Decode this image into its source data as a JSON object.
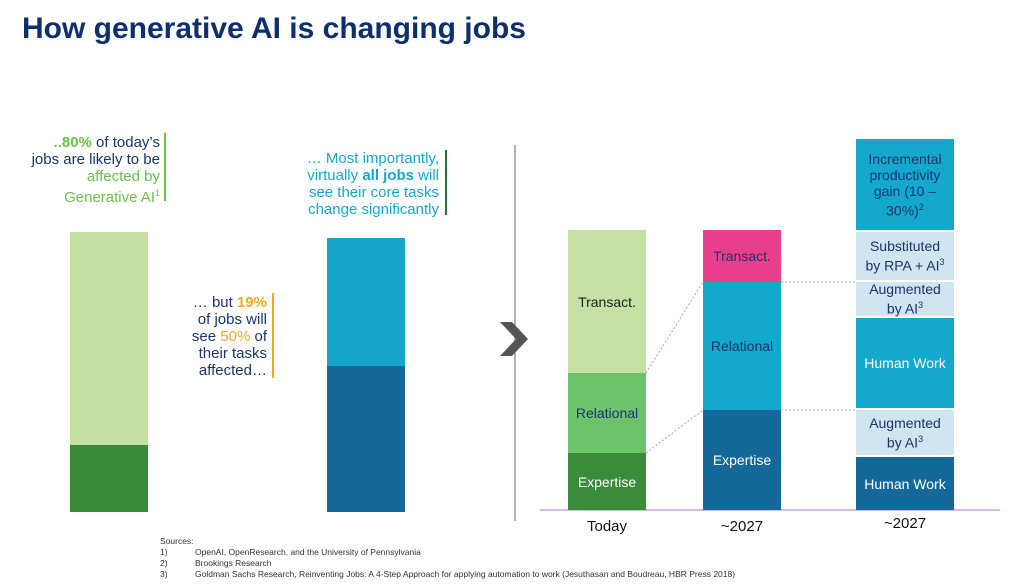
{
  "header": {
    "title": "How generative AI is changing jobs"
  },
  "callouts": {
    "left": {
      "lines": [
        [
          "..80%",
          " of today’s"
        ],
        [
          "jobs are likely to be"
        ],
        [
          "affected by"
        ],
        [
          "Generative AI",
          "1"
        ]
      ]
    },
    "middle": {
      "lines": [
        [
          "… but ",
          "19%"
        ],
        [
          "of jobs will"
        ],
        [
          "see ",
          "50%",
          " of"
        ],
        [
          "their tasks"
        ],
        [
          "affected…"
        ]
      ]
    },
    "right": {
      "lines": [
        [
          "… Most importantly,"
        ],
        [
          "virtually ",
          "all jobs",
          " will"
        ],
        [
          "see their core tasks"
        ],
        [
          "change significantly"
        ]
      ]
    }
  },
  "columns": [
    {
      "label": "Today",
      "segments": [
        {
          "lines": [
            "Transact."
          ]
        },
        {
          "lines": [
            "Relational"
          ]
        },
        {
          "lines": [
            "Expertise"
          ]
        }
      ]
    },
    {
      "label": "~2027",
      "segments": [
        {
          "lines": [
            "Transact."
          ]
        },
        {
          "lines": [
            "Relational"
          ]
        },
        {
          "lines": [
            "Expertise"
          ]
        }
      ]
    },
    {
      "label": "~2027",
      "segments": [
        {
          "lines": [
            "Incremental",
            "productivity",
            "gain (10 –",
            "30%)"
          ],
          "sup": "2"
        },
        {
          "lines": [
            "Substituted",
            "by RPA + AI"
          ],
          "sup": "3"
        },
        {
          "lines": [
            "Augmented",
            "by AI"
          ],
          "sup": "3"
        },
        {
          "lines": [
            "Human Work"
          ]
        },
        {
          "lines": [
            "Augmented",
            "by AI"
          ],
          "sup": "3"
        },
        {
          "lines": [
            "Human Work"
          ]
        }
      ]
    }
  ],
  "sources": {
    "heading": "Sources:",
    "items": [
      {
        "number": "1)",
        "text": "OpenAI, OpenResearch, and the University of Pennsylvania"
      },
      {
        "number": "2)",
        "text": "Brookings Research"
      },
      {
        "number": "3)",
        "text": "Goldman Sachs Research, Reinventing Jobs: A 4-Step Approach for applying automation to work (Jesuthasan and Boudreau, HBR Press 2018)"
      }
    ]
  }
}
